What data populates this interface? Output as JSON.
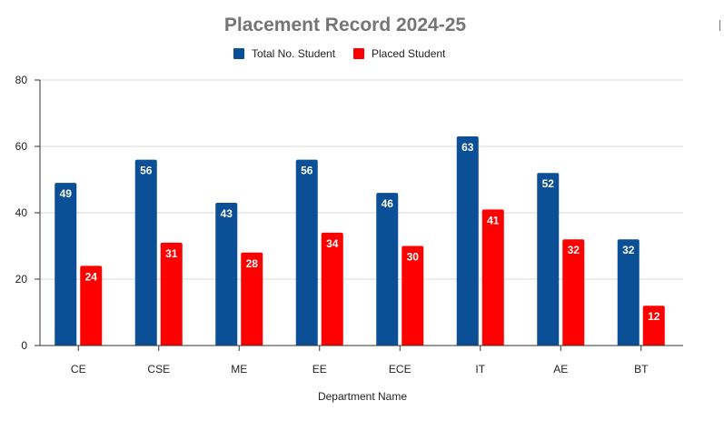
{
  "chart_data": {
    "type": "bar",
    "title": "Placement Record 2024-25",
    "xlabel": "Department Name",
    "ylabel": "",
    "categories": [
      "CE",
      "CSE",
      "ME",
      "EE",
      "ECE",
      "IT",
      "AE",
      "BT"
    ],
    "series": [
      {
        "name": "Total No. Student",
        "color": "#0b4f96",
        "values": [
          49,
          56,
          43,
          56,
          46,
          63,
          52,
          32
        ]
      },
      {
        "name": "Placed Student",
        "color": "#ff0000",
        "values": [
          24,
          31,
          28,
          34,
          30,
          41,
          32,
          12
        ]
      }
    ],
    "ylim": [
      0,
      80
    ],
    "yticks": [
      0,
      20,
      40,
      60,
      80
    ],
    "grid": true,
    "legend": "top-center",
    "data_labels": true
  }
}
